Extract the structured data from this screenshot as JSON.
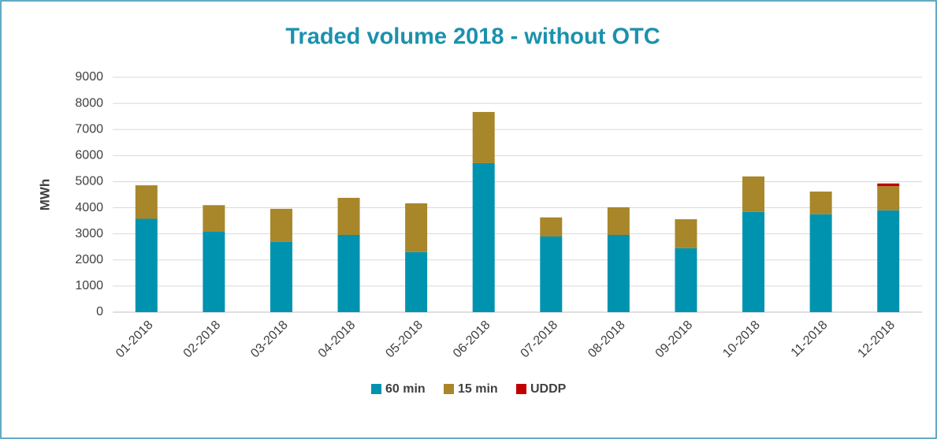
{
  "chart_data": {
    "type": "stacked_bar",
    "title": "Traded volume 2018 - without OTC",
    "y_label": "MWh",
    "categories": [
      "01-2018",
      "02-2018",
      "03-2018",
      "04-2018",
      "05-2018",
      "06-2018",
      "07-2018",
      "08-2018",
      "09-2018",
      "10-2018",
      "11-2018",
      "12-2018"
    ],
    "series": [
      {
        "name": "60 min",
        "color": "#0093b0",
        "values": [
          3580,
          3080,
          2690,
          2960,
          2300,
          5710,
          2900,
          2960,
          2450,
          3840,
          3750,
          3900
        ]
      },
      {
        "name": "15 min",
        "color": "#a8862a",
        "values": [
          1280,
          1020,
          1270,
          1420,
          1870,
          1960,
          730,
          1060,
          1110,
          1360,
          870,
          930
        ]
      },
      {
        "name": "UDDP",
        "color": "#c00000",
        "values": [
          0,
          0,
          0,
          0,
          0,
          0,
          0,
          0,
          0,
          0,
          0,
          100
        ]
      }
    ],
    "ylim": [
      0,
      9000
    ],
    "yticks": [
      0,
      1000,
      2000,
      3000,
      4000,
      5000,
      6000,
      7000,
      8000,
      9000
    ],
    "grid": true,
    "legend": "bottom"
  }
}
